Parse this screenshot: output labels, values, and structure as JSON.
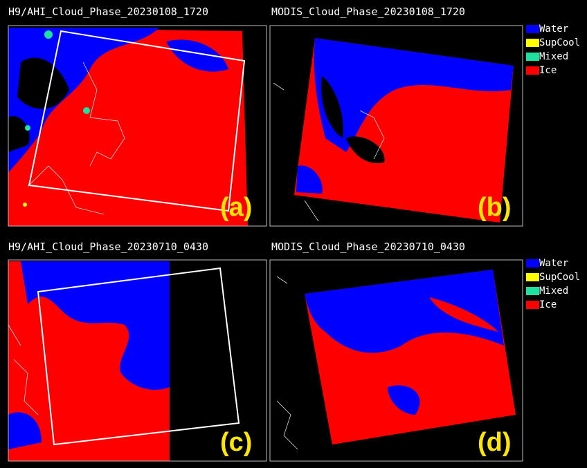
{
  "panels": [
    {
      "title": "H9/AHI_Cloud_Phase_20230108_1720",
      "label": "(a)"
    },
    {
      "title": "MODIS_Cloud_Phase_20230108_1720",
      "label": "(b)"
    },
    {
      "title": "H9/AHI_Cloud_Phase_20230710_0430",
      "label": "(c)"
    },
    {
      "title": "MODIS_Cloud_Phase_20230710_0430",
      "label": "(d)"
    }
  ],
  "legends": [
    {
      "items": [
        {
          "name": "Water",
          "color": "#0000ff"
        },
        {
          "name": "SupCool",
          "color": "#ffff00"
        },
        {
          "name": "Mixed",
          "color": "#20e0a0"
        },
        {
          "name": "Ice",
          "color": "#ff0000"
        }
      ]
    },
    {
      "items": [
        {
          "name": "Water",
          "color": "#0000ff"
        },
        {
          "name": "SupCool",
          "color": "#ffff00"
        },
        {
          "name": "Mixed",
          "color": "#20e0a0"
        },
        {
          "name": "Ice",
          "color": "#ff0000"
        }
      ]
    }
  ]
}
